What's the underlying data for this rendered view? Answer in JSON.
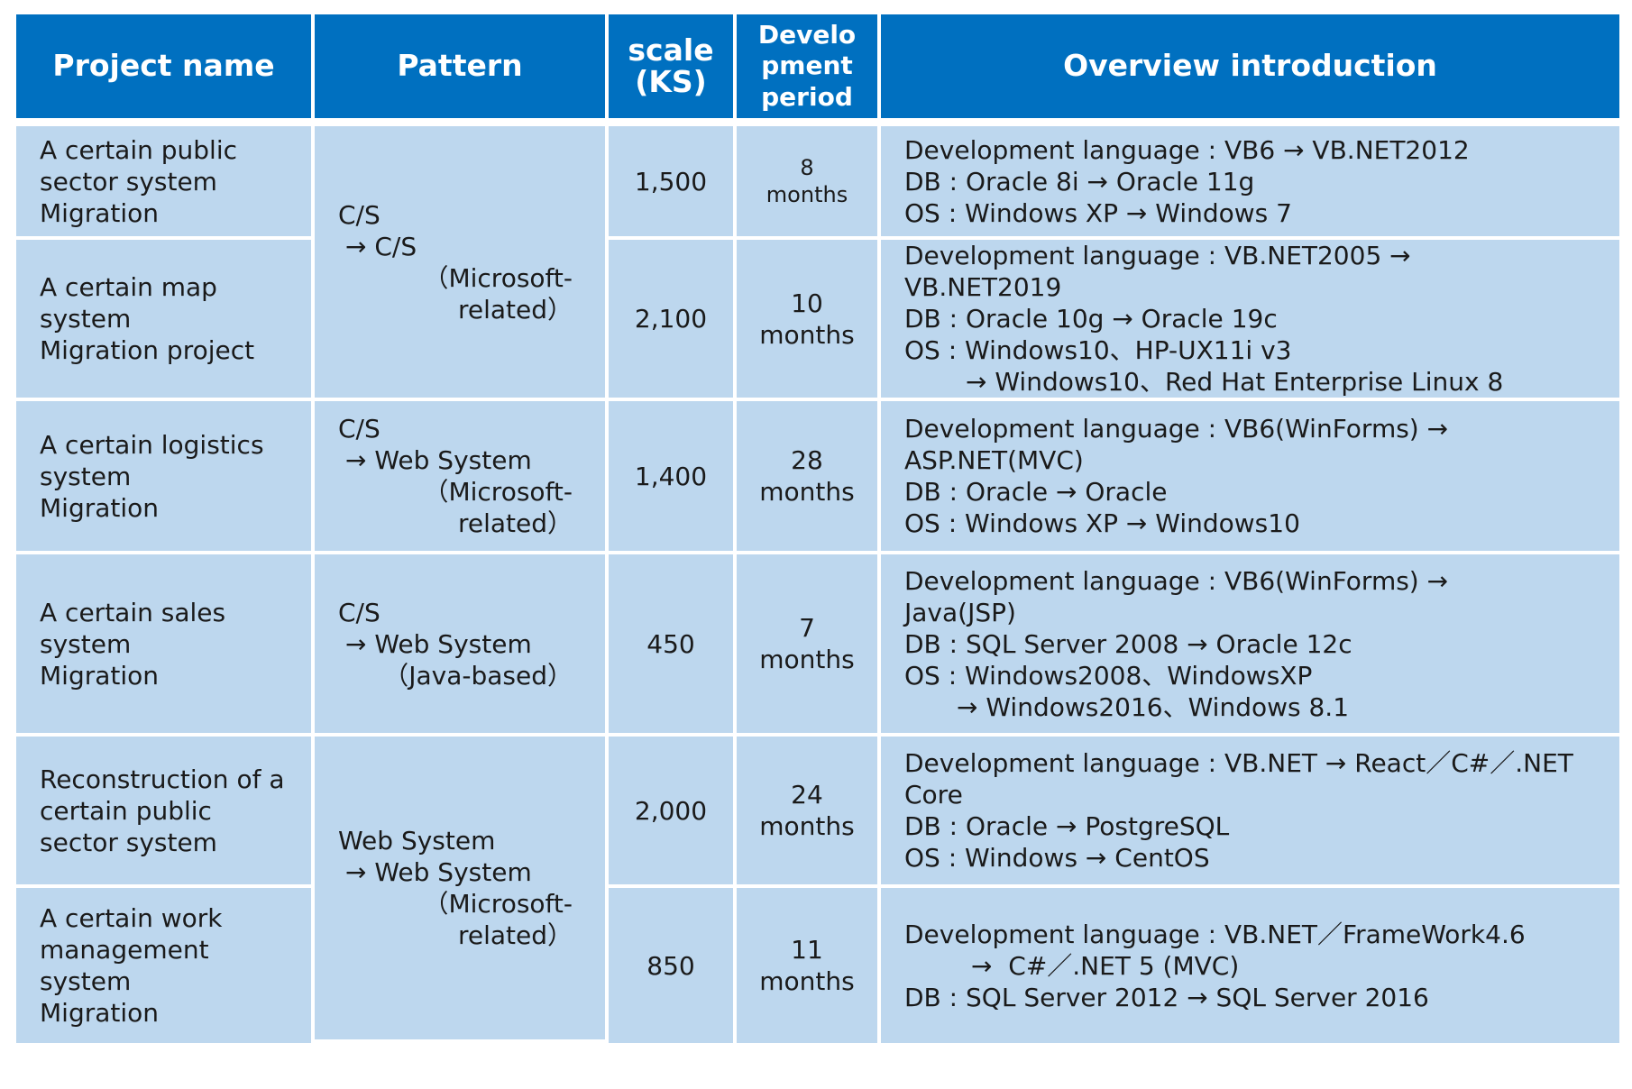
{
  "headers": {
    "project_name": "Project name",
    "pattern": "Pattern",
    "scale_line1": "scale",
    "scale_line2": "(KS)",
    "period_line1": "Develo",
    "period_line2": "pment",
    "period_line3": "period",
    "overview": "Overview introduction"
  },
  "colors": {
    "header_bg": "#0070c0",
    "header_text": "#ffffff",
    "cell_bg": "#bdd7ee",
    "grid": "#ffffff"
  },
  "patterns": {
    "p1": [
      "C/S",
      "→ C/S",
      "（Microsoft-",
      "related）"
    ],
    "p2": [
      "C/S",
      "→ Web System",
      "（Microsoft-",
      "related）"
    ],
    "p3": [
      "C/S",
      "→ Web System",
      "（Java-based）"
    ],
    "p4": [
      "Web System",
      "→ Web System",
      "（Microsoft-",
      "related）"
    ]
  },
  "rows": [
    {
      "name": [
        "A certain public",
        "sector system",
        "Migration"
      ],
      "scale": "1,500",
      "period": [
        "8",
        "months"
      ],
      "overview": [
        "Development language : VB6 → VB.NET2012",
        "DB : Oracle 8i → Oracle 11g",
        "OS : Windows XP → Windows 7"
      ]
    },
    {
      "name": [
        "A certain map",
        "system",
        "Migration project"
      ],
      "scale": "2,100",
      "period": [
        "10",
        "months"
      ],
      "overview": [
        "Development language : VB.NET2005 →",
        "VB.NET2019",
        "DB : Oracle 10g → Oracle 19c",
        "OS : Windows10、HP-UX11i v3",
        "→ Windows10、Red Hat Enterprise Linux 8"
      ]
    },
    {
      "name": [
        "A certain logistics",
        "system",
        "Migration"
      ],
      "scale": "1,400",
      "period": [
        "28",
        "months"
      ],
      "overview": [
        "Development language : VB6(WinForms) →",
        "ASP.NET(MVC)",
        "DB : Oracle → Oracle",
        "OS : Windows XP → Windows10"
      ]
    },
    {
      "name": [
        "A certain sales",
        "system",
        "Migration"
      ],
      "scale": "450",
      "period": [
        "7",
        "months"
      ],
      "overview": [
        "Development language : VB6(WinForms) →",
        "Java(JSP)",
        "DB : SQL Server 2008 → Oracle 12c",
        "OS : Windows2008、WindowsXP",
        "→ Windows2016、Windows 8.1"
      ]
    },
    {
      "name": [
        "Reconstruction of a",
        "certain public",
        "sector system"
      ],
      "scale": "2,000",
      "period": [
        "24",
        "months"
      ],
      "overview": [
        "Development language : VB.NET → React／C#／.NET",
        "Core",
        "DB : Oracle → PostgreSQL",
        "OS : Windows → CentOS"
      ]
    },
    {
      "name": [
        "A certain work",
        "management",
        "system",
        "Migration"
      ],
      "scale": "850",
      "period": [
        "11",
        "months"
      ],
      "overview": [
        "Development language : VB.NET／FrameWork4.6",
        "→  C#／.NET 5 (MVC)",
        "DB : SQL Server 2012 → SQL Server 2016"
      ]
    }
  ]
}
